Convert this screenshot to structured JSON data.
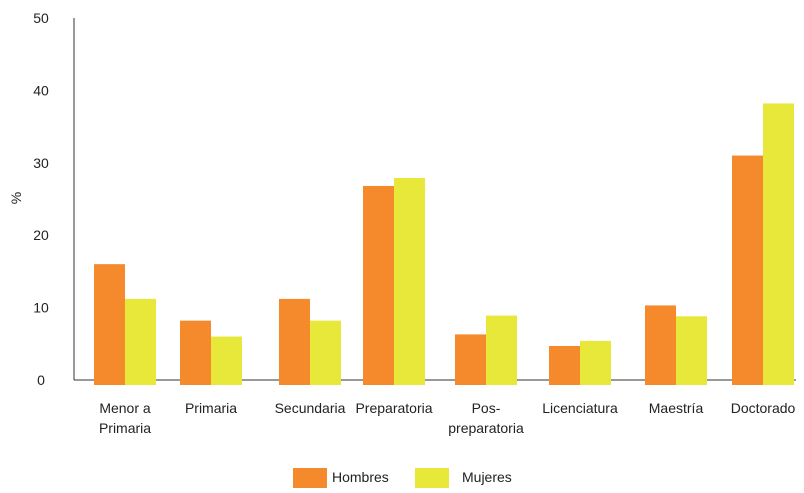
{
  "chart_data": {
    "type": "bar",
    "title": "",
    "xlabel": "",
    "ylabel": "%",
    "ylim": [
      0,
      50
    ],
    "yticks": [
      0,
      10,
      20,
      30,
      40,
      50
    ],
    "grid": false,
    "legend_position": "bottom",
    "categories": [
      [
        "Menor a",
        "Primaria"
      ],
      [
        "Primaria"
      ],
      [
        "Secundaria"
      ],
      [
        "Preparatoria"
      ],
      [
        "Pos-",
        "preparatoria"
      ],
      [
        "Licenciatura"
      ],
      [
        "Maestría"
      ],
      [
        "Doctorado"
      ]
    ],
    "series": [
      {
        "name": "Hombres",
        "color": "#F58A2D",
        "values": [
          16.0,
          8.2,
          11.2,
          26.8,
          6.3,
          4.7,
          10.3,
          31.0
        ]
      },
      {
        "name": "Mujeres",
        "color": "#E8E83A",
        "values": [
          11.2,
          6.0,
          8.2,
          27.9,
          8.9,
          5.4,
          8.8,
          38.2
        ]
      }
    ]
  }
}
